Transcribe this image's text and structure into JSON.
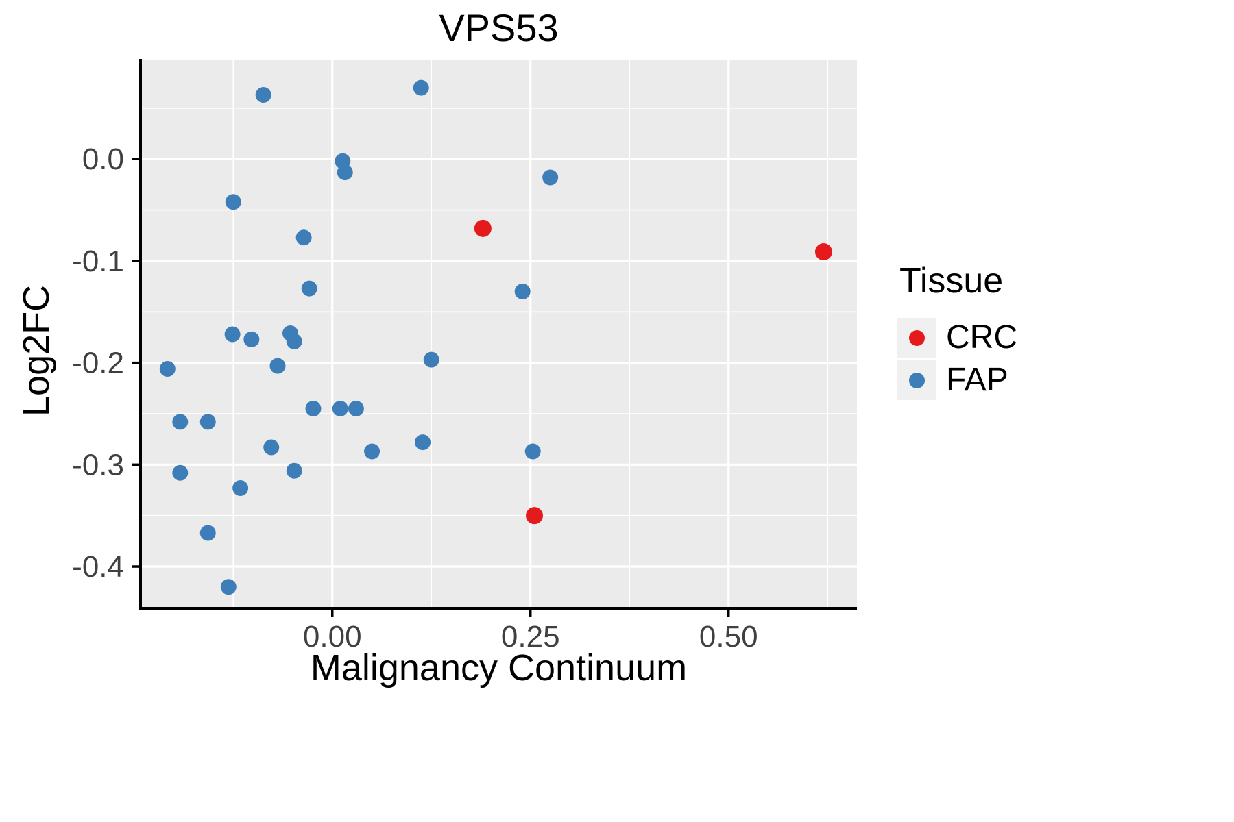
{
  "chart_data": {
    "type": "scatter",
    "title": "VPS53",
    "xlabel": "Malignancy Continuum",
    "ylabel": "Log2FC",
    "legend_title": "Tissue",
    "panel_bg": "#EBEBEB",
    "grid_color": "#FFFFFF",
    "axis_color": "#000000",
    "tick_label_color": "#404040",
    "xlim": [
      -0.242,
      0.662
    ],
    "ylim": [
      -0.441,
      0.097
    ],
    "x_ticks": [
      {
        "v": 0.0,
        "label": "0.00"
      },
      {
        "v": 0.25,
        "label": "0.25"
      },
      {
        "v": 0.5,
        "label": "0.50"
      }
    ],
    "y_ticks": [
      {
        "v": 0.0,
        "label": "0.0"
      },
      {
        "v": -0.1,
        "label": "-0.1"
      },
      {
        "v": -0.2,
        "label": "-0.2"
      },
      {
        "v": -0.3,
        "label": "-0.3"
      },
      {
        "v": -0.4,
        "label": "-0.4"
      }
    ],
    "x_minor": [
      -0.125,
      0.125,
      0.375,
      0.625
    ],
    "y_minor": [
      0.05,
      -0.05,
      -0.15,
      -0.25,
      -0.35
    ],
    "legend_position": "right",
    "series": [
      {
        "name": "CRC",
        "color": "#E41A1C",
        "marker_r": 12.5,
        "points": [
          [
            0.19,
            -0.068
          ],
          [
            0.62,
            -0.091
          ],
          [
            0.255,
            -0.35
          ]
        ]
      },
      {
        "name": "FAP",
        "color": "#3D7EB8",
        "marker_r": 11.5,
        "points": [
          [
            -0.087,
            0.063
          ],
          [
            0.112,
            0.07
          ],
          [
            0.013,
            -0.002
          ],
          [
            0.016,
            -0.013
          ],
          [
            0.275,
            -0.018
          ],
          [
            -0.125,
            -0.042
          ],
          [
            -0.036,
            -0.077
          ],
          [
            -0.029,
            -0.127
          ],
          [
            0.24,
            -0.13
          ],
          [
            -0.126,
            -0.172
          ],
          [
            -0.102,
            -0.177
          ],
          [
            -0.053,
            -0.171
          ],
          [
            -0.048,
            -0.179
          ],
          [
            -0.069,
            -0.203
          ],
          [
            0.125,
            -0.197
          ],
          [
            -0.208,
            -0.206
          ],
          [
            -0.192,
            -0.258
          ],
          [
            -0.157,
            -0.258
          ],
          [
            -0.024,
            -0.245
          ],
          [
            0.01,
            -0.245
          ],
          [
            0.03,
            -0.245
          ],
          [
            -0.077,
            -0.283
          ],
          [
            0.05,
            -0.287
          ],
          [
            0.114,
            -0.278
          ],
          [
            0.253,
            -0.287
          ],
          [
            -0.192,
            -0.308
          ],
          [
            -0.048,
            -0.306
          ],
          [
            -0.116,
            -0.323
          ],
          [
            -0.157,
            -0.367
          ],
          [
            -0.131,
            -0.42
          ]
        ]
      }
    ]
  }
}
